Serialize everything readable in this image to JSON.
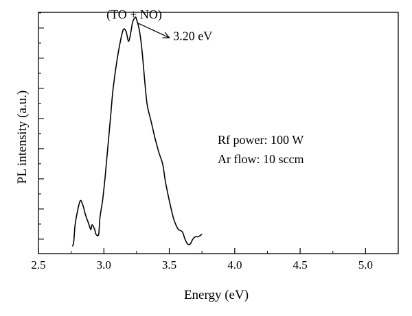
{
  "chart_data": {
    "type": "line",
    "xlabel": "Energy (eV)",
    "ylabel": "PL intensity (a.u.)",
    "xlim": [
      2.5,
      5.25
    ],
    "ylim": [
      0,
      1.0
    ],
    "x_ticks": [
      "2.5",
      "3.0",
      "3.5",
      "4.0",
      "4.5",
      "5.0"
    ],
    "x_tick_values": [
      2.5,
      3.0,
      3.5,
      4.0,
      4.5,
      5.0
    ],
    "y_tick_labels_shown": false,
    "grid": false,
    "annotations": [
      {
        "text": "(TO + NO)",
        "x": 3.02,
        "y": 0.975
      },
      {
        "text": "3.20 eV",
        "x": 3.53,
        "y": 0.885
      },
      {
        "text": "Rf power: 100 W",
        "x": 3.87,
        "y": 0.455
      },
      {
        "text": "Ar flow: 10 sccm",
        "x": 3.87,
        "y": 0.375
      }
    ],
    "series": [
      {
        "x": [
          2.76,
          2.77,
          2.78,
          2.8,
          2.82,
          2.84,
          2.86,
          2.88,
          2.9,
          2.91,
          2.93,
          2.94,
          2.96,
          2.97,
          2.99,
          3.01,
          3.03,
          3.05,
          3.07,
          3.1,
          3.13,
          3.15,
          3.17,
          3.19,
          3.21,
          3.22,
          3.24,
          3.25,
          3.27,
          3.29,
          3.31,
          3.33,
          3.36,
          3.39,
          3.42,
          3.45,
          3.47,
          3.5,
          3.53,
          3.55,
          3.57,
          3.6,
          3.62,
          3.64,
          3.66,
          3.68,
          3.7,
          3.72,
          3.75
        ],
        "y": [
          0.03,
          0.05,
          0.12,
          0.18,
          0.22,
          0.2,
          0.16,
          0.13,
          0.1,
          0.12,
          0.1,
          0.08,
          0.08,
          0.15,
          0.22,
          0.32,
          0.44,
          0.56,
          0.68,
          0.8,
          0.89,
          0.93,
          0.92,
          0.88,
          0.93,
          0.96,
          0.98,
          0.97,
          0.93,
          0.85,
          0.73,
          0.62,
          0.55,
          0.48,
          0.42,
          0.37,
          0.3,
          0.22,
          0.15,
          0.12,
          0.1,
          0.09,
          0.06,
          0.04,
          0.04,
          0.06,
          0.07,
          0.07,
          0.08
        ]
      }
    ]
  }
}
